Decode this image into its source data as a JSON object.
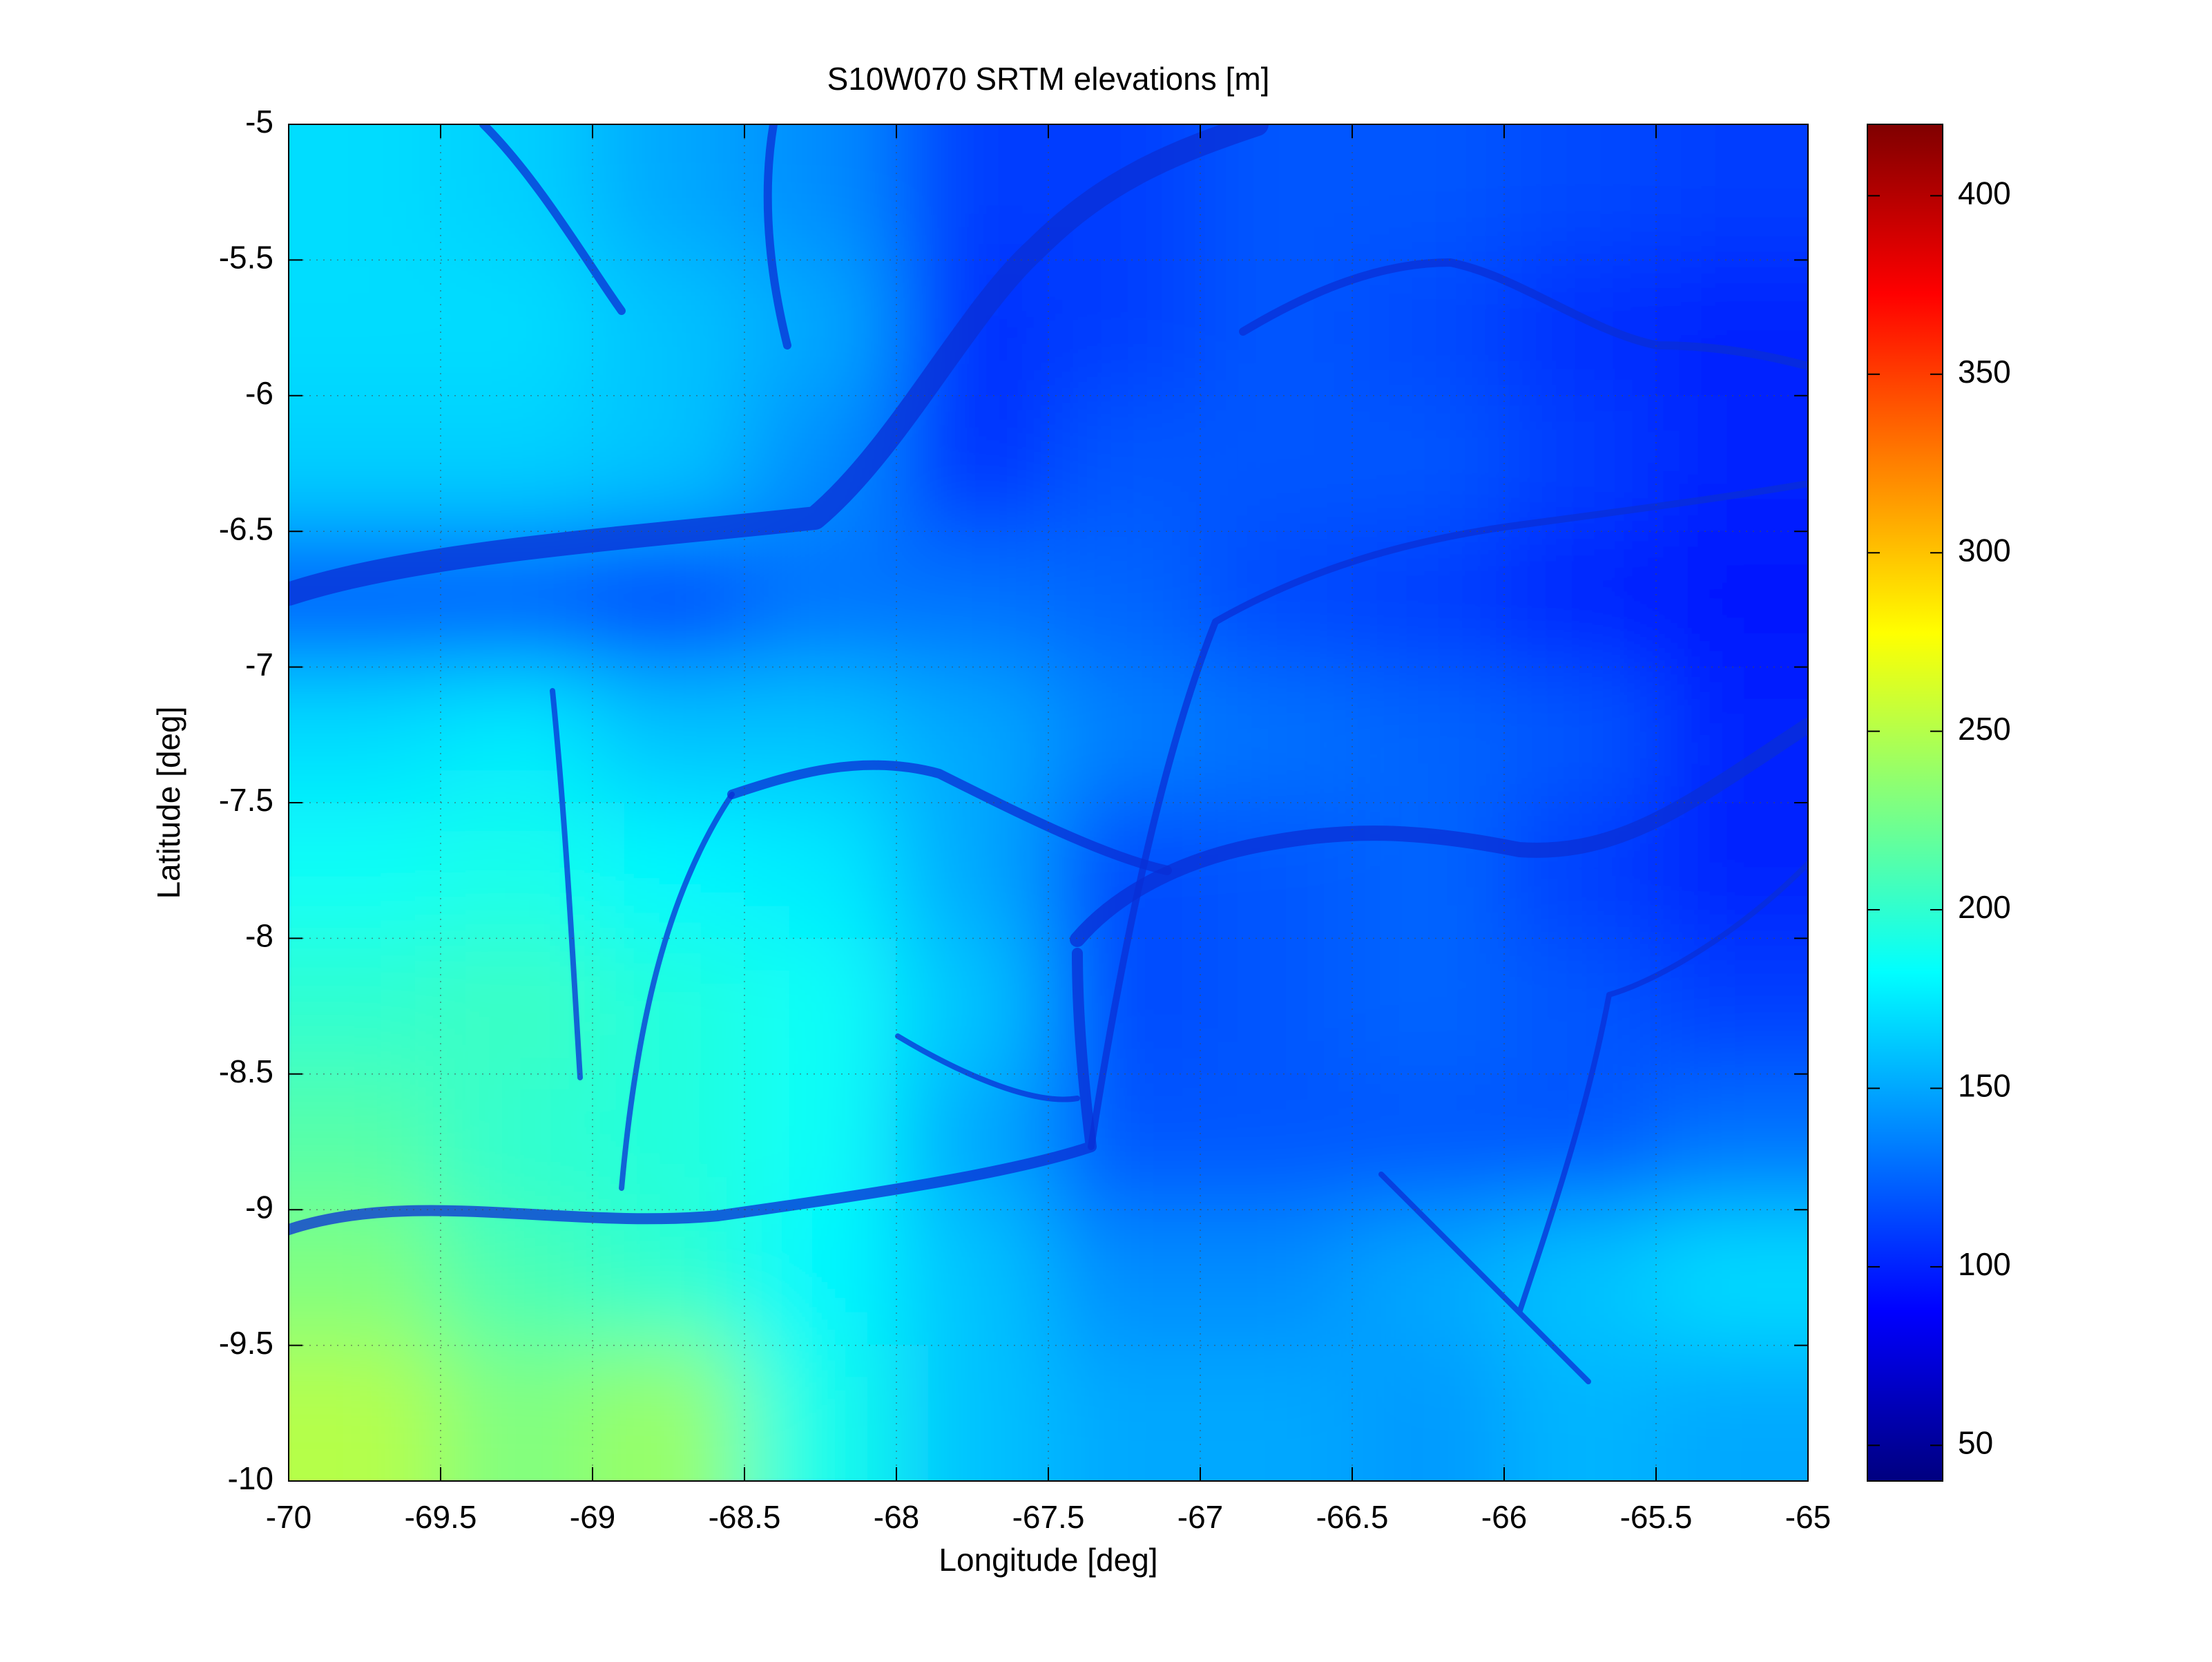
{
  "chart_data": {
    "type": "heatmap",
    "title": "S10W070 SRTM elevations [m]",
    "xlabel": "Longitude [deg]",
    "ylabel": "Latitude [deg]",
    "xlim": [
      -70,
      -65
    ],
    "ylim": [
      -10,
      -5
    ],
    "xticks": [
      -70,
      -69.5,
      -69,
      -68.5,
      -68,
      -67.5,
      -67,
      -66.5,
      -66,
      -65.5,
      -65
    ],
    "yticks": [
      -5,
      -5.5,
      -6,
      -6.5,
      -7,
      -7.5,
      -8,
      -8.5,
      -9,
      -9.5,
      -10
    ],
    "grid": true,
    "colormap": "jet",
    "clim": [
      40,
      420
    ],
    "cticks": [
      50,
      100,
      150,
      200,
      250,
      300,
      350,
      400
    ],
    "z": [
      [
        170,
        165,
        150,
        140,
        110,
        110,
        120,
        120,
        115,
        110
      ],
      [
        170,
        170,
        160,
        150,
        105,
        110,
        120,
        115,
        105,
        100
      ],
      [
        165,
        165,
        160,
        140,
        105,
        120,
        120,
        120,
        110,
        100
      ],
      [
        120,
        120,
        110,
        130,
        130,
        125,
        115,
        110,
        100,
        95
      ],
      [
        170,
        175,
        160,
        160,
        150,
        135,
        130,
        125,
        120,
        100
      ],
      [
        185,
        190,
        180,
        175,
        150,
        115,
        120,
        125,
        110,
        100
      ],
      [
        200,
        205,
        195,
        185,
        160,
        115,
        120,
        125,
        120,
        110
      ],
      [
        215,
        200,
        195,
        185,
        150,
        120,
        120,
        120,
        120,
        130
      ],
      [
        230,
        210,
        200,
        180,
        160,
        140,
        140,
        150,
        160,
        170
      ],
      [
        250,
        230,
        240,
        190,
        160,
        150,
        150,
        145,
        155,
        150
      ]
    ]
  }
}
